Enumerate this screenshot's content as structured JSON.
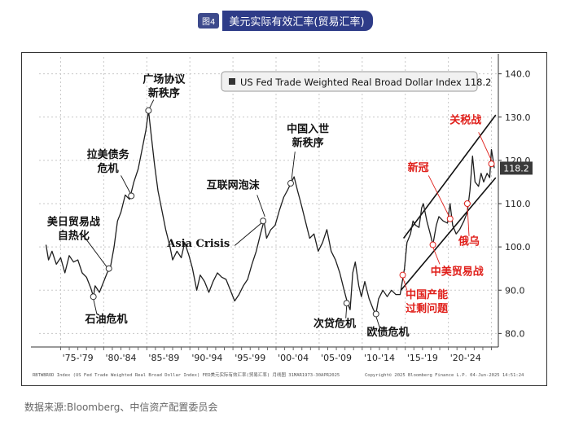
{
  "figure": {
    "badge": "图4",
    "title": "美元实际有效汇率(贸易汇率)",
    "source": "数据来源:Bloomberg、中信资产配置委员会"
  },
  "chart_data": {
    "type": "line",
    "legend": "US Fed Trade Weighted Real Broad Dollar Index 118.2",
    "last_value": "118.2",
    "ylim": [
      78,
      142
    ],
    "y_ticks": [
      "140.0",
      "130.0",
      "120.0",
      "110.0",
      "100.0",
      "90.0",
      "80.0"
    ],
    "x_tick_labels": [
      "'75-'79",
      "'80-'84",
      "'85-'89",
      "'90-'94",
      "'95-'99",
      "'00-'04",
      "'05-'09",
      "'10-'14",
      "'15-'19",
      "'20-'24"
    ],
    "footer_left": "RBTWBROD Index (US Fed Trade Weighted Real Broad Dollar Index) FED美元实际有效汇率(贸易汇率)  月线图 31MAR1973-30APR2025",
    "footer_right": "Copyright© 2025 Bloomberg Finance L.P.        04-Jun-2025 14:51:24",
    "series": [
      {
        "points": [
          [
            1973.3,
            100.5
          ],
          [
            1973.6,
            97
          ],
          [
            1974.0,
            99
          ],
          [
            1974.5,
            96
          ],
          [
            1975.0,
            97.5
          ],
          [
            1975.5,
            94
          ],
          [
            1976.0,
            98
          ],
          [
            1976.5,
            96.5
          ],
          [
            1977.0,
            97
          ],
          [
            1977.5,
            94
          ],
          [
            1978.0,
            93
          ],
          [
            1978.5,
            90.5
          ],
          [
            1978.8,
            88.5
          ],
          [
            1979.0,
            91
          ],
          [
            1979.5,
            89.5
          ],
          [
            1980.0,
            92
          ],
          [
            1980.4,
            94
          ],
          [
            1980.8,
            95.5
          ],
          [
            1981.2,
            100
          ],
          [
            1981.6,
            106
          ],
          [
            1982.0,
            108
          ],
          [
            1982.5,
            112
          ],
          [
            1983.0,
            111
          ],
          [
            1983.5,
            115
          ],
          [
            1984.0,
            118
          ],
          [
            1984.5,
            123
          ],
          [
            1984.9,
            127
          ],
          [
            1985.2,
            131.5
          ],
          [
            1985.5,
            126
          ],
          [
            1985.9,
            119
          ],
          [
            1986.3,
            113
          ],
          [
            1986.8,
            108
          ],
          [
            1987.2,
            104
          ],
          [
            1987.7,
            100
          ],
          [
            1988.0,
            97
          ],
          [
            1988.5,
            99
          ],
          [
            1989.0,
            97.5
          ],
          [
            1989.4,
            101
          ],
          [
            1989.9,
            98
          ],
          [
            1990.3,
            95
          ],
          [
            1990.8,
            90
          ],
          [
            1991.2,
            93.5
          ],
          [
            1991.7,
            92
          ],
          [
            1992.2,
            89.5
          ],
          [
            1992.7,
            92
          ],
          [
            1993.2,
            94
          ],
          [
            1993.7,
            93
          ],
          [
            1994.2,
            92.5
          ],
          [
            1994.7,
            90
          ],
          [
            1995.2,
            87.5
          ],
          [
            1995.7,
            89
          ],
          [
            1996.2,
            91
          ],
          [
            1996.7,
            92.5
          ],
          [
            1997.2,
            96
          ],
          [
            1997.7,
            99
          ],
          [
            1998.2,
            103
          ],
          [
            1998.6,
            106
          ],
          [
            1998.9,
            102
          ],
          [
            1999.4,
            104
          ],
          [
            1999.9,
            105
          ],
          [
            2000.4,
            108.5
          ],
          [
            2000.9,
            111.5
          ],
          [
            2001.3,
            113
          ],
          [
            2001.8,
            115
          ],
          [
            2002.1,
            116.2
          ],
          [
            2002.5,
            113
          ],
          [
            2002.9,
            110
          ],
          [
            2003.4,
            106
          ],
          [
            2003.9,
            102
          ],
          [
            2004.4,
            103
          ],
          [
            2004.9,
            99
          ],
          [
            2005.4,
            101
          ],
          [
            2005.9,
            104
          ],
          [
            2006.4,
            99
          ],
          [
            2006.9,
            97
          ],
          [
            2007.4,
            94
          ],
          [
            2007.9,
            90
          ],
          [
            2008.3,
            87
          ],
          [
            2008.6,
            85.5
          ],
          [
            2008.9,
            94
          ],
          [
            2009.2,
            96.5
          ],
          [
            2009.6,
            91
          ],
          [
            2009.9,
            88.5
          ],
          [
            2010.3,
            92
          ],
          [
            2010.8,
            88
          ],
          [
            2011.3,
            85.5
          ],
          [
            2011.6,
            84.5
          ],
          [
            2011.9,
            88
          ],
          [
            2012.4,
            90
          ],
          [
            2012.9,
            88.5
          ],
          [
            2013.4,
            90
          ],
          [
            2013.9,
            89
          ],
          [
            2014.4,
            89
          ],
          [
            2014.9,
            95
          ],
          [
            2015.2,
            101
          ],
          [
            2015.6,
            103
          ],
          [
            2015.9,
            106
          ],
          [
            2016.2,
            105
          ],
          [
            2016.6,
            104.5
          ],
          [
            2016.9,
            109
          ],
          [
            2017.1,
            110
          ],
          [
            2017.5,
            106
          ],
          [
            2017.9,
            103
          ],
          [
            2018.2,
            100.5
          ],
          [
            2018.6,
            105
          ],
          [
            2018.9,
            107
          ],
          [
            2019.4,
            106
          ],
          [
            2019.9,
            105.5
          ],
          [
            2020.2,
            110
          ],
          [
            2020.5,
            105
          ],
          [
            2020.9,
            103
          ],
          [
            2021.3,
            104
          ],
          [
            2021.8,
            106
          ],
          [
            2022.2,
            108
          ],
          [
            2022.5,
            113
          ],
          [
            2022.8,
            121
          ],
          [
            2023.1,
            115
          ],
          [
            2023.5,
            114
          ],
          [
            2023.8,
            117
          ],
          [
            2024.1,
            115
          ],
          [
            2024.5,
            117
          ],
          [
            2024.8,
            116
          ],
          [
            2025.0,
            122.5
          ],
          [
            2025.2,
            120
          ],
          [
            2025.33,
            118.2
          ]
        ]
      }
    ],
    "channel_lines": [
      {
        "from": [
          2014.8,
          102
        ],
        "to": [
          2025.5,
          130.5
        ]
      },
      {
        "from": [
          2014.5,
          90
        ],
        "to": [
          2025.5,
          116
        ]
      }
    ],
    "markers": [
      {
        "x": 1978.8,
        "y": 88.5
      },
      {
        "x": 1980.6,
        "y": 95
      },
      {
        "x": 1983.2,
        "y": 111.8
      },
      {
        "x": 1985.2,
        "y": 131.5
      },
      {
        "x": 1998.5,
        "y": 106
      },
      {
        "x": 2001.7,
        "y": 114.7
      },
      {
        "x": 2008.2,
        "y": 87
      },
      {
        "x": 2011.6,
        "y": 84.5
      }
    ],
    "red_markers": [
      {
        "x": 2014.7,
        "y": 93.5
      },
      {
        "x": 2018.2,
        "y": 100.5
      },
      {
        "x": 2020.2,
        "y": 106.5
      },
      {
        "x": 2022.2,
        "y": 110
      },
      {
        "x": 2025.0,
        "y": 119.2
      }
    ],
    "annotations": [
      {
        "lines": [
          "美日贸易战",
          "自热化"
        ],
        "pos": [
          1976.5,
          105
        ],
        "color": "#111111",
        "leader": [
          [
            1977.5,
            103
          ],
          [
            1980.5,
            95
          ]
        ]
      },
      {
        "lines": [
          "石油危机"
        ],
        "pos": [
          1980.3,
          82.5
        ],
        "color": "#111111",
        "leader": [
          [
            1979.2,
            84.5
          ],
          [
            1978.8,
            88
          ]
        ]
      },
      {
        "lines": [
          "拉美债务",
          "危机"
        ],
        "pos": [
          1980.5,
          120.5
        ],
        "color": "#111111",
        "leader": [
          [
            1982.0,
            116.5
          ],
          [
            1983.2,
            112
          ]
        ]
      },
      {
        "lines": [
          "广场协议",
          "新秩序"
        ],
        "pos": [
          1987.0,
          138
        ],
        "color": "#111111",
        "leader": [
          [
            1985.8,
            134
          ],
          [
            1985.3,
            132
          ]
        ]
      },
      {
        "lines": [
          "Asia Crisis"
        ],
        "pos": [
          1991.0,
          100
        ],
        "color": "#111111",
        "leader": [
          [
            1995.2,
            100.3
          ],
          [
            1998.3,
            105.5
          ]
        ]
      },
      {
        "lines": [
          "互联网泡沫"
        ],
        "pos": [
          1995.0,
          113.5
        ],
        "color": "#111111",
        "leader": [
          [
            1997.8,
            112
          ],
          [
            1998.7,
            107
          ]
        ]
      },
      {
        "lines": [
          "中国入世",
          "新秩序"
        ],
        "pos": [
          2003.7,
          126.5
        ],
        "color": "#111111",
        "leader": [
          [
            2002.2,
            122
          ],
          [
            2001.8,
            115.5
          ]
        ]
      },
      {
        "lines": [
          "次贷危机"
        ],
        "pos": [
          2006.8,
          81.5
        ],
        "color": "#111111",
        "leader": [
          [
            2008.1,
            83.5
          ],
          [
            2008.2,
            86.5
          ]
        ]
      },
      {
        "lines": [
          "欧债危机"
        ],
        "pos": [
          2013.0,
          79.5
        ],
        "color": "#111111",
        "leader": [
          [
            2012.0,
            81.5
          ],
          [
            2011.6,
            84
          ]
        ]
      },
      {
        "lines": [
          "中国产能",
          "过剩问题"
        ],
        "pos": [
          2017.5,
          88.2
        ],
        "color": "#e0201b",
        "leader": [
          [
            2015.2,
            90
          ],
          [
            2014.7,
            93
          ]
        ]
      },
      {
        "lines": [
          "中美贸易战"
        ],
        "pos": [
          2021.0,
          93.5
        ],
        "color": "#e0201b",
        "leader": [
          [
            2019.0,
            96
          ],
          [
            2018.2,
            100
          ]
        ]
      },
      {
        "lines": [
          "新冠"
        ],
        "pos": [
          2016.5,
          117.5
        ],
        "color": "#e0201b",
        "leader": [
          [
            2017.7,
            116.5
          ],
          [
            2020.1,
            107
          ]
        ]
      },
      {
        "lines": [
          "俄乌"
        ],
        "pos": [
          2022.4,
          100.5
        ],
        "color": "#e0201b",
        "leader": [
          [
            2022.4,
            102.5
          ],
          [
            2022.2,
            109.5
          ]
        ]
      },
      {
        "lines": [
          "关税战"
        ],
        "pos": [
          2022.0,
          128.5
        ],
        "color": "#e0201b",
        "leader": [
          [
            2023.5,
            126.5
          ],
          [
            2025.0,
            120
          ]
        ]
      }
    ]
  }
}
